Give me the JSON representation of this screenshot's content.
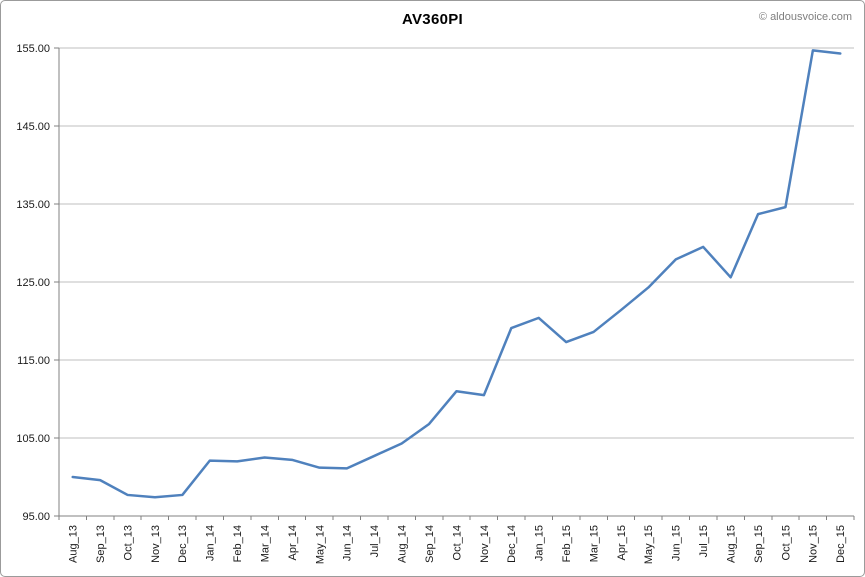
{
  "header": {
    "title": "AV360PI",
    "watermark": "© aldousvoice.com"
  },
  "colors": {
    "line": "#4F81BD",
    "gridline": "#BFBFBF",
    "axis": "#808080",
    "label_text": "#1A1A1A",
    "watermark_text": "#7F7F7F",
    "frame_border": "#9B9B9B",
    "background": "#FFFFFF"
  },
  "chart_data": {
    "type": "line",
    "title": "AV360PI",
    "xlabel": "",
    "ylabel": "",
    "legend": "none",
    "grid": "horizontal-major",
    "ylim": [
      95,
      155
    ],
    "ytick_step": 10,
    "ytick_labels": [
      "95.00",
      "105.00",
      "115.00",
      "125.00",
      "135.00",
      "145.00",
      "155.00"
    ],
    "categories": [
      "Aug_13",
      "Sep_13",
      "Oct_13",
      "Nov_13",
      "Dec_13",
      "Jan_14",
      "Feb_14",
      "Mar_14",
      "Apr_14",
      "May_14",
      "Jun_14",
      "Jul_14",
      "Aug_14",
      "Sep_14",
      "Oct_14",
      "Nov_14",
      "Dec_14",
      "Jan_15",
      "Feb_15",
      "Mar_15",
      "Apr_15",
      "May_15",
      "Jun_15",
      "Jul_15",
      "Aug_15",
      "Sep_15",
      "Oct_15",
      "Nov_15",
      "Dec_15"
    ],
    "series": [
      {
        "name": "AV360PI",
        "color": "#4F81BD",
        "values": [
          100.0,
          99.6,
          97.7,
          97.4,
          97.7,
          102.1,
          102.0,
          102.5,
          102.2,
          101.2,
          101.1,
          102.7,
          104.3,
          106.8,
          111.0,
          110.5,
          119.1,
          120.4,
          117.3,
          118.6,
          121.4,
          124.3,
          127.9,
          129.5,
          125.6,
          133.7,
          134.6,
          154.7,
          154.3
        ]
      }
    ]
  }
}
